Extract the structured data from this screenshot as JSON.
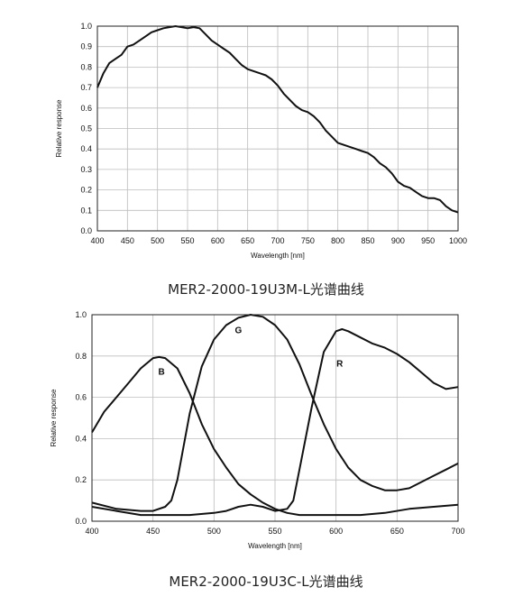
{
  "chart_data": [
    {
      "type": "line",
      "caption": "MER2-2000-19U3M-L光谱曲线",
      "xlabel": "Wavelength [nm]",
      "ylabel": "Relative response",
      "xlim": [
        400,
        1000
      ],
      "ylim": [
        0,
        1.0
      ],
      "xticks": [
        400,
        450,
        500,
        550,
        600,
        650,
        700,
        750,
        800,
        850,
        900,
        950,
        1000
      ],
      "yticks": [
        0.0,
        0.1,
        0.2,
        0.3,
        0.4,
        0.5,
        0.6,
        0.7,
        0.8,
        0.9,
        1.0
      ],
      "ytick_decimals": 1,
      "grid": true,
      "series": [
        {
          "name": "",
          "label_position": null,
          "x": [
            400,
            410,
            420,
            430,
            440,
            450,
            460,
            470,
            480,
            490,
            500,
            510,
            520,
            530,
            540,
            550,
            560,
            570,
            580,
            590,
            600,
            610,
            620,
            630,
            640,
            650,
            660,
            670,
            680,
            690,
            700,
            710,
            720,
            730,
            740,
            750,
            760,
            770,
            780,
            790,
            800,
            810,
            820,
            830,
            840,
            850,
            860,
            870,
            880,
            890,
            900,
            910,
            920,
            930,
            940,
            950,
            960,
            970,
            980,
            990,
            1000
          ],
          "y": [
            0.7,
            0.77,
            0.82,
            0.84,
            0.86,
            0.9,
            0.91,
            0.93,
            0.95,
            0.97,
            0.98,
            0.99,
            0.995,
            1.0,
            0.995,
            0.99,
            0.995,
            0.99,
            0.96,
            0.93,
            0.91,
            0.89,
            0.87,
            0.84,
            0.81,
            0.79,
            0.78,
            0.77,
            0.76,
            0.74,
            0.71,
            0.67,
            0.64,
            0.61,
            0.59,
            0.58,
            0.56,
            0.53,
            0.49,
            0.46,
            0.43,
            0.42,
            0.41,
            0.4,
            0.39,
            0.38,
            0.36,
            0.33,
            0.31,
            0.28,
            0.24,
            0.22,
            0.21,
            0.19,
            0.17,
            0.16,
            0.16,
            0.15,
            0.12,
            0.1,
            0.09
          ]
        }
      ]
    },
    {
      "type": "line",
      "caption": "MER2-2000-19U3C-L光谱曲线",
      "xlabel": "Wavelength [nm]",
      "ylabel": "Relative response",
      "xlim": [
        400,
        700
      ],
      "ylim": [
        0,
        1.0
      ],
      "xticks": [
        400,
        450,
        500,
        550,
        600,
        650,
        700
      ],
      "yticks": [
        0.0,
        0.2,
        0.4,
        0.6,
        0.8,
        1.0
      ],
      "ytick_decimals": 1,
      "grid": true,
      "series": [
        {
          "name": "B",
          "label_position": [
            457,
            0.71
          ],
          "x": [
            400,
            410,
            420,
            430,
            440,
            450,
            455,
            460,
            470,
            480,
            490,
            500,
            510,
            520,
            530,
            540,
            550,
            560,
            570,
            580,
            590,
            600,
            620,
            640,
            660,
            680,
            700
          ],
          "y": [
            0.43,
            0.53,
            0.6,
            0.67,
            0.74,
            0.79,
            0.795,
            0.79,
            0.74,
            0.62,
            0.47,
            0.35,
            0.26,
            0.18,
            0.13,
            0.09,
            0.06,
            0.04,
            0.03,
            0.03,
            0.03,
            0.03,
            0.03,
            0.04,
            0.06,
            0.07,
            0.08
          ]
        },
        {
          "name": "G",
          "label_position": [
            520,
            0.91
          ],
          "x": [
            400,
            420,
            440,
            450,
            460,
            465,
            470,
            480,
            490,
            500,
            510,
            520,
            530,
            540,
            550,
            560,
            570,
            580,
            590,
            600,
            610,
            620,
            630,
            640,
            650,
            660,
            670,
            680,
            690,
            700
          ],
          "y": [
            0.09,
            0.06,
            0.05,
            0.05,
            0.07,
            0.1,
            0.2,
            0.52,
            0.75,
            0.88,
            0.95,
            0.985,
            1.0,
            0.99,
            0.95,
            0.88,
            0.76,
            0.61,
            0.47,
            0.35,
            0.26,
            0.2,
            0.17,
            0.15,
            0.15,
            0.16,
            0.19,
            0.22,
            0.25,
            0.28
          ]
        },
        {
          "name": "R",
          "label_position": [
            603,
            0.75
          ],
          "x": [
            400,
            420,
            440,
            460,
            480,
            500,
            510,
            520,
            530,
            540,
            550,
            560,
            565,
            570,
            580,
            590,
            600,
            605,
            610,
            620,
            630,
            640,
            650,
            660,
            670,
            680,
            690,
            700
          ],
          "y": [
            0.07,
            0.05,
            0.03,
            0.03,
            0.03,
            0.04,
            0.05,
            0.07,
            0.08,
            0.07,
            0.05,
            0.06,
            0.1,
            0.25,
            0.55,
            0.82,
            0.92,
            0.93,
            0.92,
            0.89,
            0.86,
            0.84,
            0.81,
            0.77,
            0.72,
            0.67,
            0.64,
            0.65
          ]
        }
      ]
    }
  ]
}
